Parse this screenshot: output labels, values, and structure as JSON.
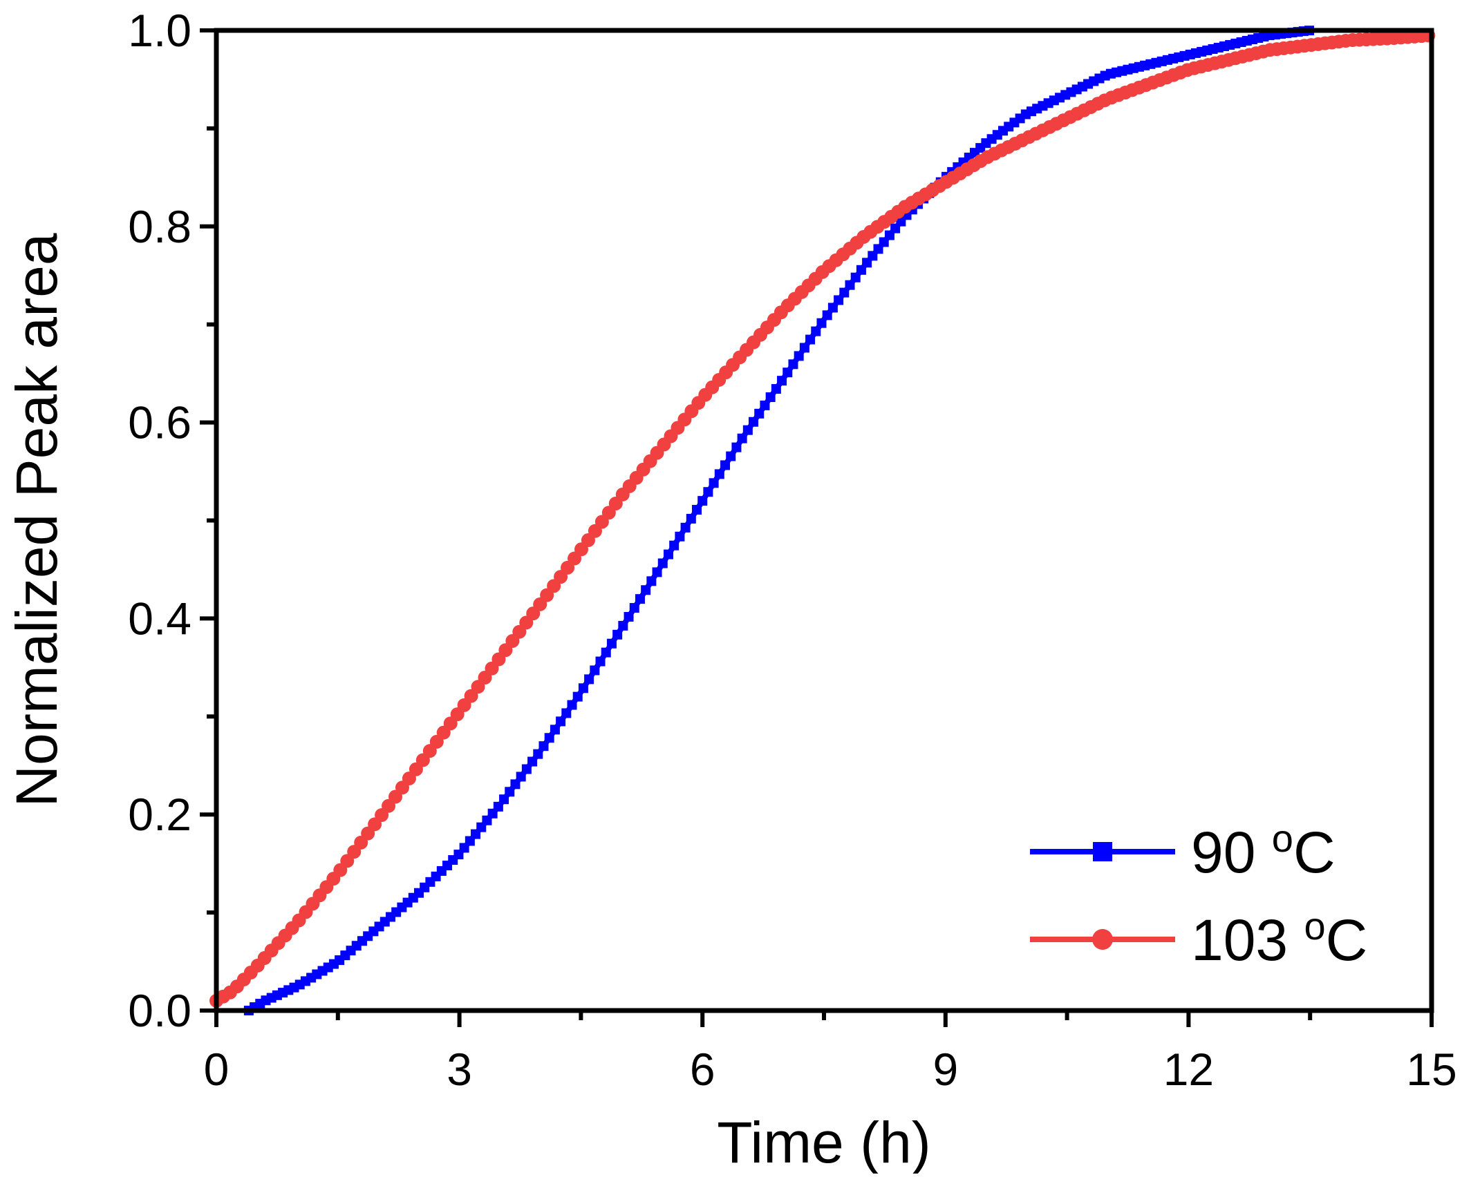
{
  "chart_data": {
    "type": "line",
    "title": "",
    "xlabel": "Time (h)",
    "ylabel": "Normalized Peak area",
    "xlim": [
      0,
      15
    ],
    "ylim": [
      0,
      1.0
    ],
    "x_ticks": [
      0,
      3,
      6,
      9,
      12,
      15
    ],
    "x_tick_labels": [
      "0",
      "3",
      "6",
      "9",
      "12",
      "15"
    ],
    "y_ticks": [
      0.0,
      0.2,
      0.4,
      0.6,
      0.8,
      1.0
    ],
    "y_tick_labels": [
      "0.0",
      "0.2",
      "0.4",
      "0.6",
      "0.8",
      "1.0"
    ],
    "grid": false,
    "legend_position": "bottom-right",
    "series": [
      {
        "name": "90 °C",
        "legend_label": "90",
        "legend_unit": "C",
        "legend_sup": "o",
        "color": "#0000ff",
        "marker": "square",
        "x": [
          0.4,
          0.6,
          1.0,
          1.5,
          2.0,
          2.5,
          3.0,
          3.5,
          4.0,
          4.5,
          5.0,
          5.5,
          6.0,
          6.5,
          7.0,
          7.5,
          8.0,
          8.5,
          9.0,
          9.5,
          10.0,
          10.5,
          11.0,
          11.5,
          12.0,
          12.5,
          13.0,
          13.5
        ],
        "y": [
          0.0,
          0.01,
          0.025,
          0.05,
          0.085,
          0.12,
          0.16,
          0.21,
          0.265,
          0.325,
          0.39,
          0.455,
          0.52,
          0.585,
          0.645,
          0.705,
          0.76,
          0.81,
          0.85,
          0.885,
          0.915,
          0.935,
          0.955,
          0.965,
          0.975,
          0.985,
          0.995,
          1.0
        ]
      },
      {
        "name": "103 °C",
        "legend_label": "103",
        "legend_unit": "C",
        "legend_sup": "o",
        "color": "#f04040",
        "marker": "circle",
        "x": [
          0.0,
          0.2,
          0.5,
          1.0,
          1.5,
          2.0,
          2.5,
          3.0,
          3.5,
          4.0,
          4.5,
          5.0,
          5.5,
          6.0,
          6.5,
          7.0,
          7.5,
          8.0,
          8.5,
          9.0,
          9.5,
          10.0,
          10.5,
          11.0,
          11.5,
          12.0,
          12.5,
          13.0,
          13.5,
          14.0,
          14.5,
          15.0
        ],
        "y": [
          0.01,
          0.02,
          0.045,
          0.09,
          0.14,
          0.195,
          0.25,
          0.305,
          0.36,
          0.415,
          0.47,
          0.525,
          0.575,
          0.625,
          0.67,
          0.715,
          0.755,
          0.79,
          0.82,
          0.845,
          0.87,
          0.89,
          0.91,
          0.93,
          0.945,
          0.96,
          0.97,
          0.98,
          0.985,
          0.99,
          0.992,
          0.995
        ]
      }
    ]
  }
}
